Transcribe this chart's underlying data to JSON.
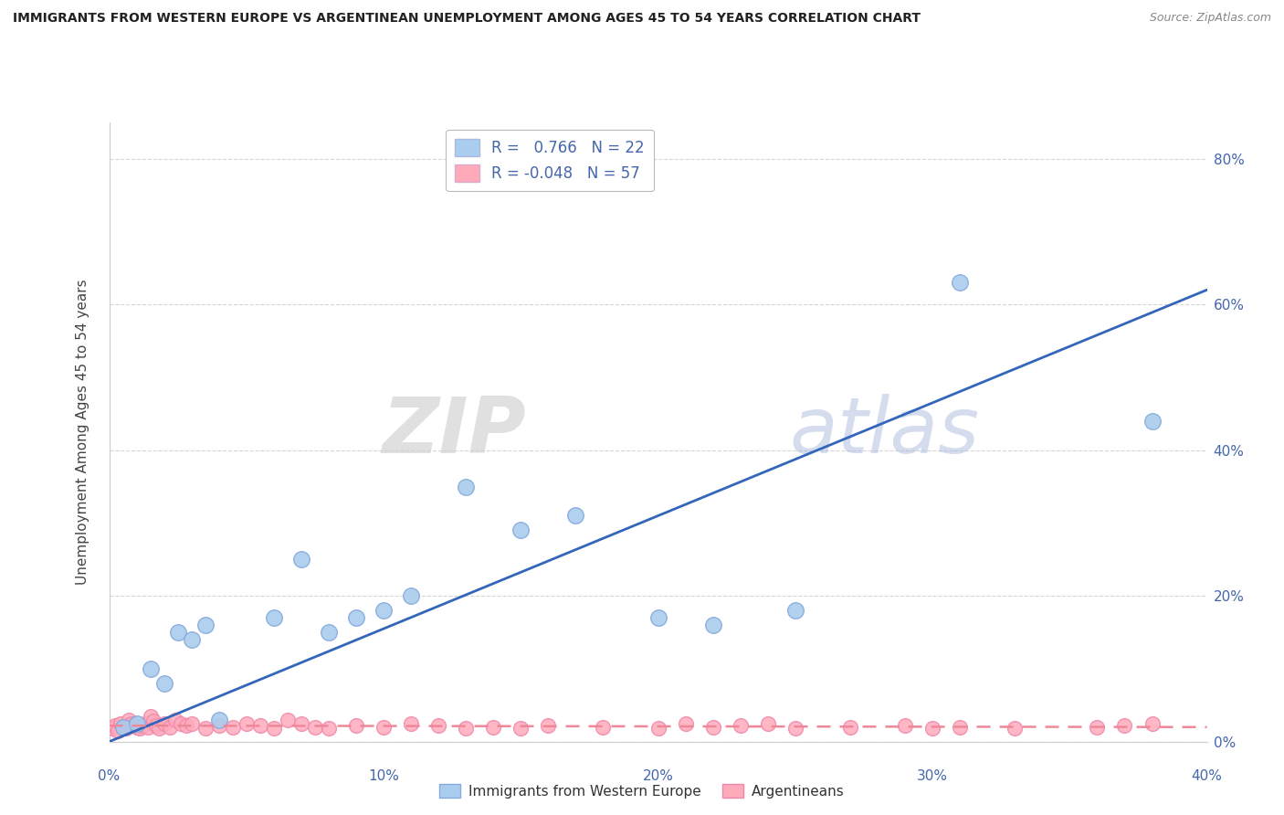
{
  "title": "IMMIGRANTS FROM WESTERN EUROPE VS ARGENTINEAN UNEMPLOYMENT AMONG AGES 45 TO 54 YEARS CORRELATION CHART",
  "source": "Source: ZipAtlas.com",
  "ylabel": "Unemployment Among Ages 45 to 54 years",
  "xlim": [
    0.0,
    0.4
  ],
  "ylim": [
    0.0,
    0.85
  ],
  "yticks": [
    0.0,
    0.2,
    0.4,
    0.6,
    0.8
  ],
  "xticks": [
    0.0,
    0.1,
    0.2,
    0.3,
    0.4
  ],
  "blue_label": "Immigrants from Western Europe",
  "pink_label": "Argentineans",
  "blue_R": "0.766",
  "blue_N": "22",
  "pink_R": "-0.048",
  "pink_N": "57",
  "blue_color": "#AACCEE",
  "blue_edge_color": "#88AADD",
  "pink_color": "#FFAABB",
  "pink_edge_color": "#EE88AA",
  "blue_line_color": "#3366BB",
  "pink_line_color": "#EE8899",
  "watermark_zip": "ZIP",
  "watermark_atlas": "atlas",
  "bg_color": "#FFFFFF",
  "grid_color": "#CCCCCC",
  "tick_label_color": "#4466AA",
  "title_color": "#222222",
  "source_color": "#888888",
  "ylabel_color": "#444444",
  "blue_scatter_x": [
    0.005,
    0.01,
    0.015,
    0.02,
    0.025,
    0.03,
    0.035,
    0.04,
    0.06,
    0.07,
    0.08,
    0.09,
    0.1,
    0.11,
    0.13,
    0.15,
    0.17,
    0.2,
    0.22,
    0.25,
    0.31,
    0.38
  ],
  "blue_scatter_y": [
    0.02,
    0.025,
    0.1,
    0.08,
    0.15,
    0.14,
    0.16,
    0.03,
    0.17,
    0.25,
    0.15,
    0.17,
    0.18,
    0.2,
    0.35,
    0.29,
    0.31,
    0.17,
    0.16,
    0.18,
    0.63,
    0.44
  ],
  "pink_scatter_x": [
    0.001,
    0.002,
    0.003,
    0.004,
    0.005,
    0.006,
    0.007,
    0.008,
    0.009,
    0.01,
    0.011,
    0.012,
    0.013,
    0.014,
    0.015,
    0.016,
    0.017,
    0.018,
    0.02,
    0.022,
    0.024,
    0.026,
    0.028,
    0.03,
    0.035,
    0.04,
    0.045,
    0.05,
    0.055,
    0.06,
    0.065,
    0.07,
    0.075,
    0.08,
    0.09,
    0.1,
    0.11,
    0.12,
    0.13,
    0.14,
    0.15,
    0.16,
    0.18,
    0.2,
    0.21,
    0.22,
    0.23,
    0.24,
    0.25,
    0.27,
    0.29,
    0.3,
    0.31,
    0.33,
    0.36,
    0.37,
    0.38
  ],
  "pink_scatter_y": [
    0.018,
    0.022,
    0.015,
    0.025,
    0.02,
    0.018,
    0.03,
    0.025,
    0.022,
    0.02,
    0.018,
    0.022,
    0.025,
    0.02,
    0.035,
    0.028,
    0.022,
    0.018,
    0.025,
    0.02,
    0.03,
    0.025,
    0.022,
    0.025,
    0.018,
    0.022,
    0.02,
    0.025,
    0.022,
    0.018,
    0.03,
    0.025,
    0.02,
    0.018,
    0.022,
    0.02,
    0.025,
    0.022,
    0.018,
    0.02,
    0.018,
    0.022,
    0.02,
    0.018,
    0.025,
    0.02,
    0.022,
    0.025,
    0.018,
    0.02,
    0.022,
    0.018,
    0.02,
    0.018,
    0.02,
    0.022,
    0.025
  ],
  "blue_line_x": [
    0.0,
    0.4
  ],
  "blue_line_y": [
    0.0,
    0.62
  ],
  "pink_line_x": [
    0.0,
    0.4
  ],
  "pink_line_y": [
    0.022,
    0.02
  ]
}
